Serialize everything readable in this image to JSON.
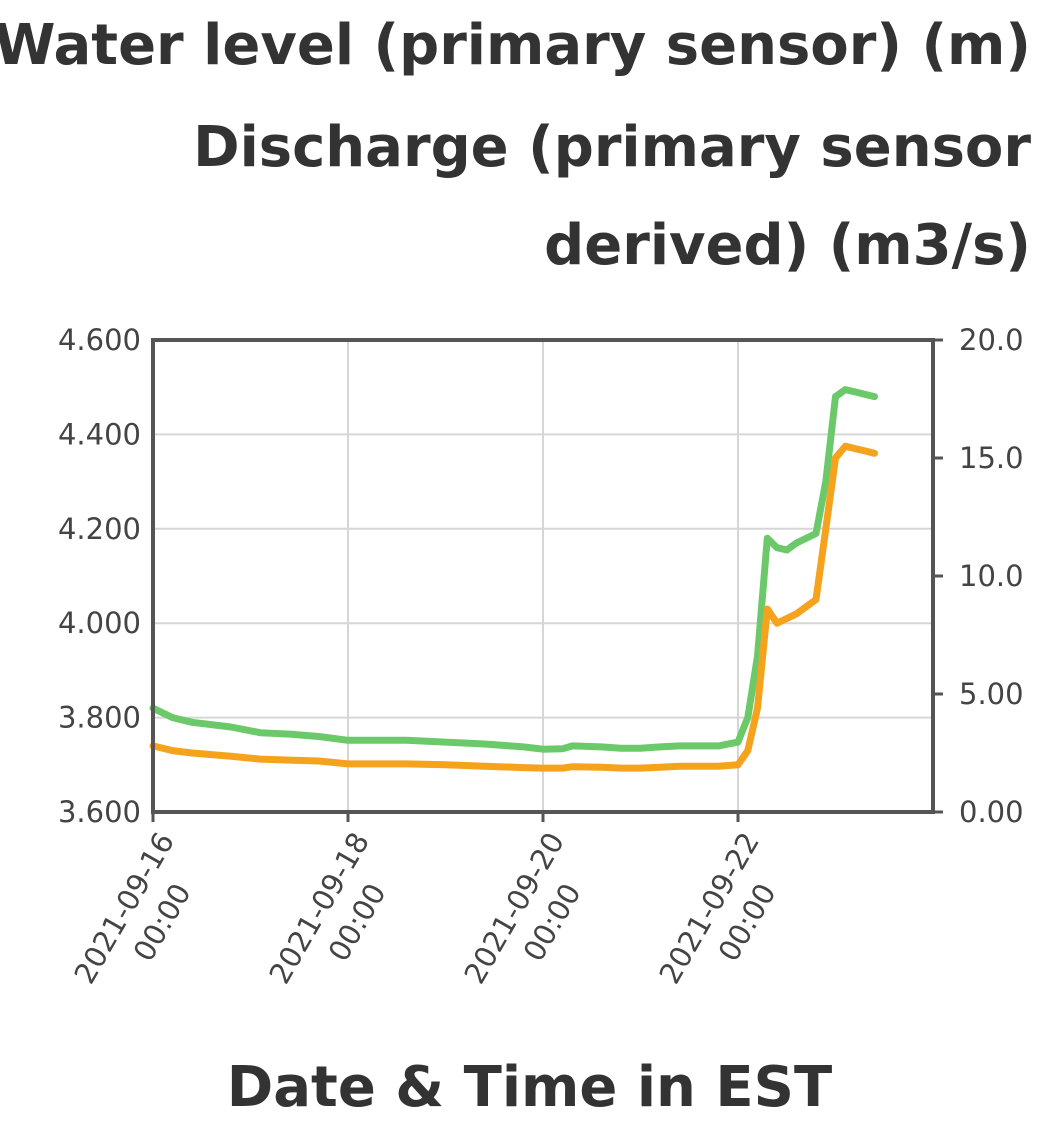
{
  "chart_data": {
    "type": "line",
    "title": [
      "Water level (primary sensor) (m)",
      "Discharge (primary sensor",
      "derived) (m3/s)"
    ],
    "xlabel": "Date & Time in EST",
    "ylabel": "",
    "x_ticks": [
      {
        "value": 1.0,
        "date": "2021-09-16",
        "time": "00:00"
      },
      {
        "value": 3.0,
        "date": "2021-09-18",
        "time": "00:00"
      },
      {
        "value": 5.0,
        "date": "2021-09-20",
        "time": "00:00"
      },
      {
        "value": 7.0,
        "date": "2021-09-22",
        "time": "00:00"
      }
    ],
    "xlim": [
      1.0,
      9.0
    ],
    "ylim_left": [
      3.6,
      4.6
    ],
    "y_ticks_left": [
      "4.600",
      "4.400",
      "4.200",
      "4.000",
      "3.800",
      "3.600"
    ],
    "ylim_right": [
      0,
      20
    ],
    "y_ticks_right": [
      "20.0",
      "15.0",
      "10.0",
      "5.00",
      "0.00"
    ],
    "grid": true,
    "legend": "none",
    "series": [
      {
        "axis": "left",
        "color": "#6cc96a",
        "x": [
          1.0,
          1.2,
          1.4,
          1.8,
          2.1,
          2.4,
          2.7,
          3.0,
          3.2,
          3.6,
          4.0,
          4.4,
          4.8,
          5.0,
          5.2,
          5.3,
          5.6,
          5.8,
          6.0,
          6.2,
          6.4,
          6.6,
          6.8,
          7.0,
          7.1,
          7.2,
          7.3,
          7.4,
          7.5,
          7.6,
          7.8,
          7.9,
          8.0,
          8.1,
          8.2,
          8.3,
          8.4
        ],
        "y": [
          3.82,
          3.8,
          3.79,
          3.78,
          3.768,
          3.765,
          3.76,
          3.752,
          3.752,
          3.752,
          3.748,
          3.744,
          3.738,
          3.733,
          3.734,
          3.74,
          3.738,
          3.735,
          3.735,
          3.738,
          3.74,
          3.74,
          3.74,
          3.748,
          3.8,
          3.93,
          4.18,
          4.16,
          4.155,
          4.17,
          4.19,
          4.3,
          4.48,
          4.495,
          4.49,
          4.485,
          4.48
        ]
      },
      {
        "axis": "left",
        "color": "#f5a21d",
        "x": [
          1.0,
          1.2,
          1.4,
          1.8,
          2.1,
          2.4,
          2.7,
          3.0,
          3.2,
          3.6,
          4.0,
          4.4,
          4.8,
          5.0,
          5.2,
          5.3,
          5.6,
          5.8,
          6.0,
          6.2,
          6.4,
          6.6,
          6.8,
          7.0,
          7.1,
          7.2,
          7.3,
          7.4,
          7.5,
          7.6,
          7.8,
          7.9,
          8.0,
          8.1,
          8.2,
          8.3,
          8.4
        ],
        "y": [
          3.74,
          3.73,
          3.725,
          3.718,
          3.712,
          3.71,
          3.708,
          3.702,
          3.702,
          3.702,
          3.7,
          3.697,
          3.694,
          3.693,
          3.693,
          3.696,
          3.695,
          3.693,
          3.693,
          3.695,
          3.697,
          3.697,
          3.697,
          3.7,
          3.73,
          3.82,
          4.03,
          4.0,
          4.01,
          4.02,
          4.05,
          4.2,
          4.35,
          4.375,
          4.37,
          4.365,
          4.36
        ]
      }
    ]
  }
}
